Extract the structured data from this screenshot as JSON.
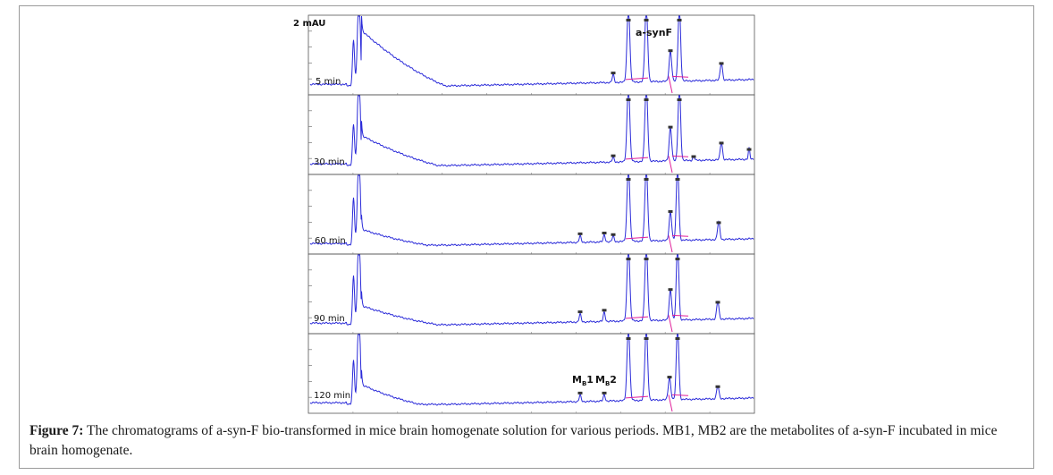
{
  "figure": {
    "caption_label": "Figure 7:",
    "caption_text": " The chromatograms of a-syn-F bio-transformed in mice brain homogenate solution for various periods. MB1, MB2 are the metabolites of a-syn-F incubated in mice brain homogenate.",
    "unit_label": "2 mAU",
    "colors": {
      "trace": "#2b2bd9",
      "baseline_marker": "#e0209a",
      "panel_border": "#555555",
      "frame": "#9a9a9a"
    }
  },
  "chart_data": {
    "type": "line",
    "title": "",
    "xlabel": "",
    "ylabel": "2 mAU",
    "legend": "none",
    "grid": false,
    "panels": [
      {
        "label": "5 min",
        "peak_labels": [
          "a-synF"
        ]
      },
      {
        "label": "30 min",
        "peak_labels": []
      },
      {
        "label": "60 min",
        "peak_labels": []
      },
      {
        "label": "90 min",
        "peak_labels": []
      },
      {
        "label": "120 min",
        "peak_labels": [
          "MB1",
          "MB2"
        ]
      }
    ],
    "peak_label_parts": {
      "MB1": {
        "main": "M",
        "sub": "B",
        "tail": "1"
      },
      "MB2": {
        "main": "M",
        "sub": "B",
        "tail": "2"
      }
    }
  }
}
